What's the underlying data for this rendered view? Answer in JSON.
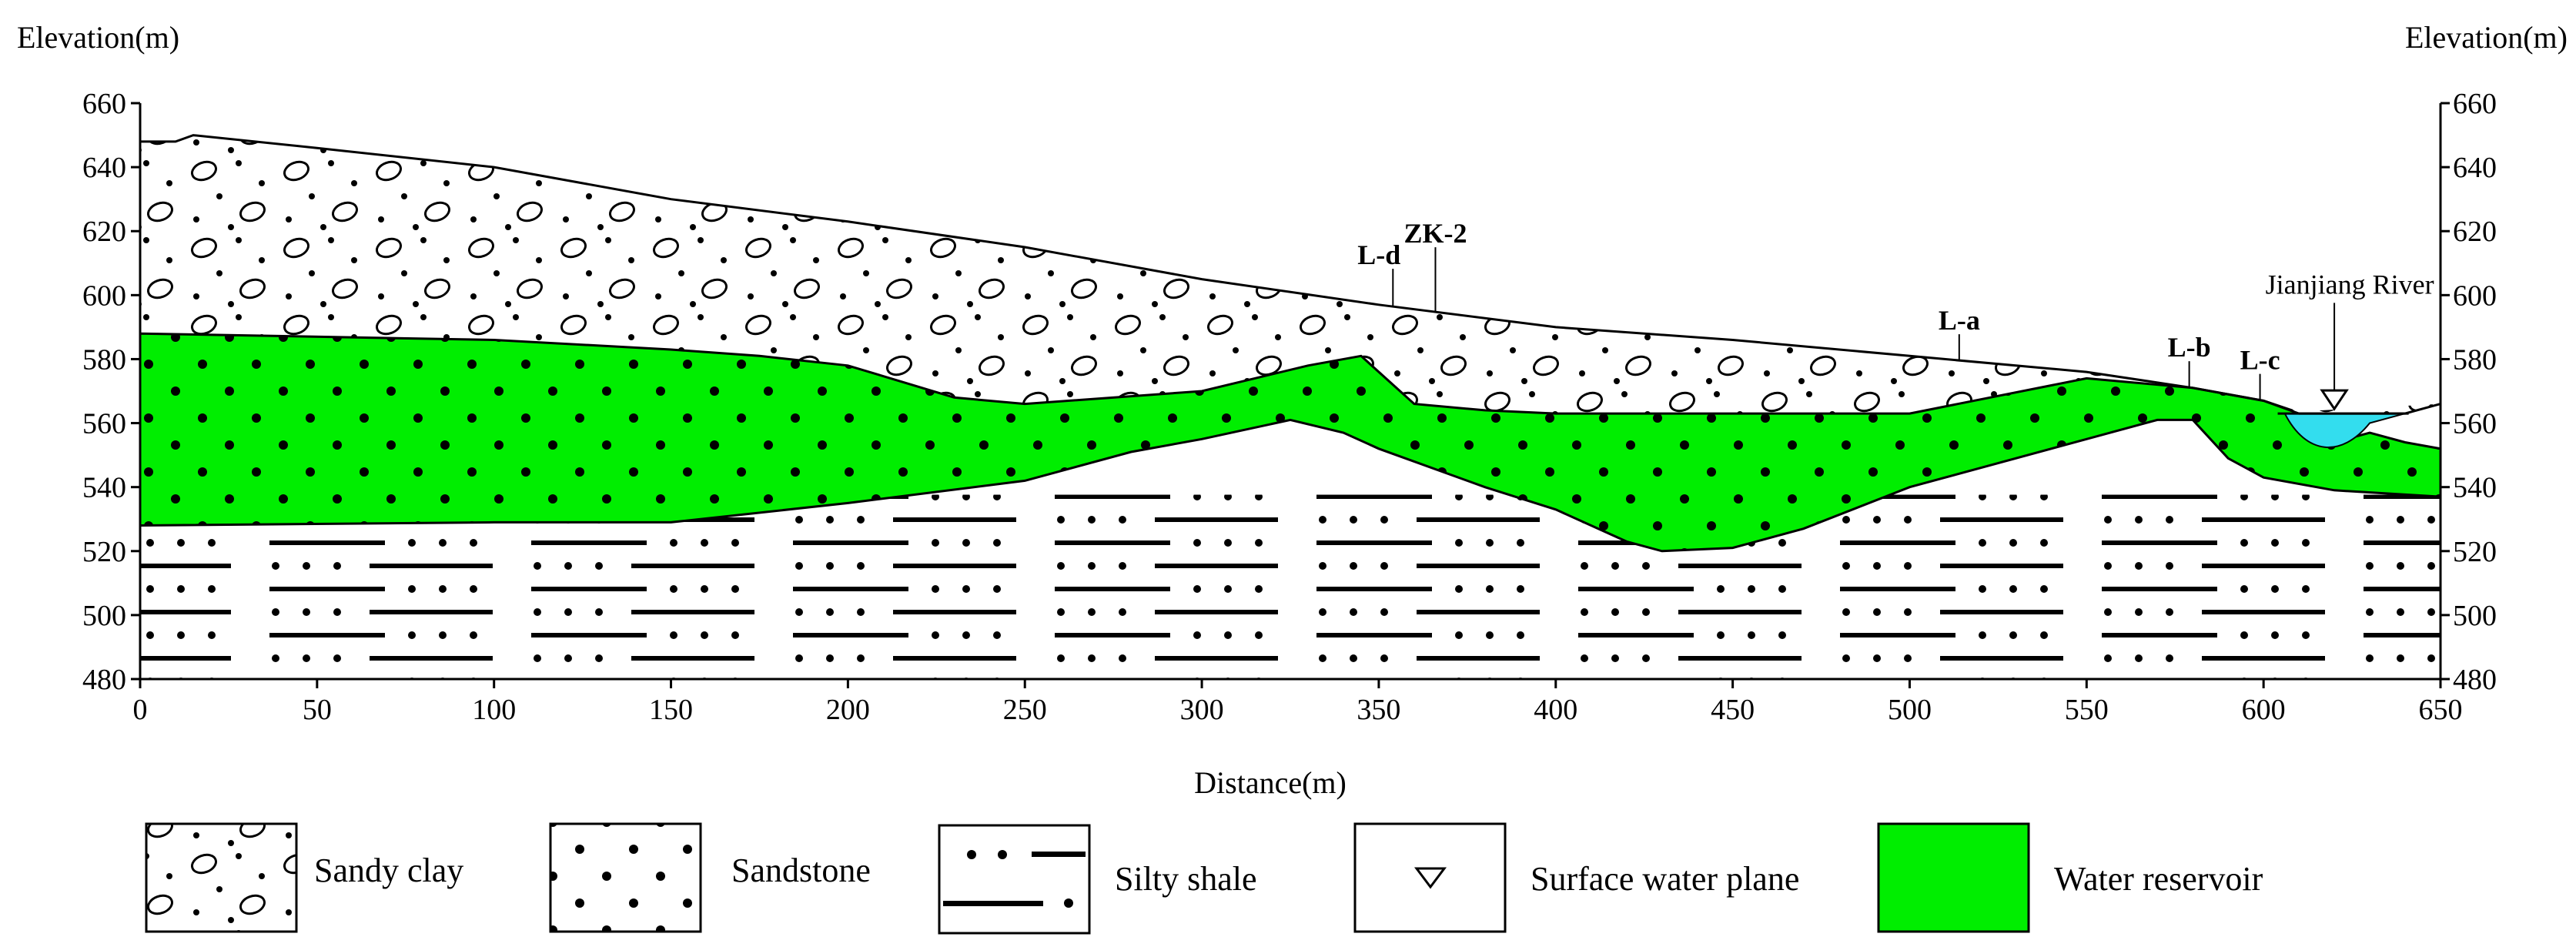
{
  "left_axis": {
    "title": "Elevation(m)",
    "ticks": [
      "660",
      "640",
      "620",
      "600",
      "580",
      "560",
      "540",
      "520",
      "500",
      "480"
    ]
  },
  "right_axis": {
    "title": "Elevation(m)",
    "ticks": [
      "660",
      "640",
      "620",
      "600",
      "580",
      "560",
      "540",
      "520",
      "500",
      "480"
    ]
  },
  "x_axis": {
    "title": "Distance(m)",
    "ticks": [
      "0",
      "50",
      "100",
      "150",
      "200",
      "250",
      "300",
      "350",
      "400",
      "450",
      "500",
      "550",
      "600",
      "650"
    ]
  },
  "callouts": {
    "zk2": "ZK-2",
    "ld": "L-d",
    "la": "L-a",
    "lb": "L-b",
    "lc": "L-c",
    "river": "Jianjiang River"
  },
  "legend": {
    "sandy_clay": "Sandy clay",
    "sandstone": "Sandstone",
    "silty_shale": "Silty shale",
    "surface_water": "Surface water plane",
    "reservoir": "Water reservoir"
  },
  "colors": {
    "reservoir": "#00ee00",
    "river": "#33ddee",
    "line": "#000000"
  },
  "chart_data": {
    "type": "geologic cross-section",
    "xlim": [
      0,
      650
    ],
    "ylim": [
      480,
      660
    ],
    "xlabel": "Distance(m)",
    "ylabel": "Elevation(m)",
    "ground_surface": [
      [
        0,
        648
      ],
      [
        10,
        648
      ],
      [
        15,
        650
      ],
      [
        50,
        646
      ],
      [
        100,
        640
      ],
      [
        150,
        630
      ],
      [
        200,
        623
      ],
      [
        250,
        615
      ],
      [
        300,
        605
      ],
      [
        350,
        597
      ],
      [
        400,
        590
      ],
      [
        450,
        586
      ],
      [
        500,
        581
      ],
      [
        550,
        576
      ],
      [
        580,
        571
      ],
      [
        600,
        567
      ],
      [
        610,
        563
      ],
      [
        640,
        563
      ],
      [
        650,
        566
      ]
    ],
    "sandy_clay_base": [
      [
        0,
        588
      ],
      [
        100,
        586
      ],
      [
        150,
        583
      ],
      [
        175,
        581
      ],
      [
        200,
        578
      ],
      [
        230,
        568
      ],
      [
        250,
        566
      ],
      [
        300,
        570
      ],
      [
        330,
        578
      ],
      [
        345,
        581
      ],
      [
        360,
        566
      ],
      [
        380,
        564
      ],
      [
        400,
        563
      ],
      [
        450,
        563
      ],
      [
        500,
        563
      ],
      [
        550,
        574
      ],
      [
        600,
        563
      ]
    ],
    "reservoir_top": [
      [
        0,
        588
      ],
      [
        100,
        586
      ],
      [
        150,
        583
      ],
      [
        175,
        581
      ],
      [
        200,
        578
      ],
      [
        230,
        568
      ],
      [
        250,
        566
      ],
      [
        300,
        570
      ],
      [
        330,
        578
      ],
      [
        345,
        581
      ],
      [
        360,
        566
      ],
      [
        380,
        564
      ],
      [
        400,
        563
      ],
      [
        450,
        563
      ],
      [
        500,
        563
      ],
      [
        550,
        574
      ],
      [
        580,
        571
      ],
      [
        600,
        567
      ],
      [
        608,
        564
      ],
      [
        620,
        554
      ],
      [
        630,
        557
      ],
      [
        640,
        554
      ],
      [
        650,
        552
      ]
    ],
    "reservoir_bottom": [
      [
        0,
        528
      ],
      [
        100,
        529
      ],
      [
        150,
        529
      ],
      [
        200,
        535
      ],
      [
        250,
        542
      ],
      [
        280,
        551
      ],
      [
        300,
        555
      ],
      [
        325,
        561
      ],
      [
        340,
        557
      ],
      [
        350,
        552
      ],
      [
        380,
        540
      ],
      [
        400,
        533
      ],
      [
        420,
        523
      ],
      [
        430,
        520
      ],
      [
        450,
        521
      ],
      [
        470,
        527
      ],
      [
        500,
        540
      ],
      [
        550,
        555
      ],
      [
        570,
        561
      ],
      [
        580,
        561
      ],
      [
        590,
        549
      ],
      [
        600,
        543
      ],
      [
        620,
        539
      ],
      [
        650,
        537
      ]
    ],
    "water_level": 563,
    "river_bottom": 550,
    "callout_positions_m": {
      "L-d": 354,
      "ZK-2": 366,
      "L-a": 514,
      "L-b": 579,
      "L-c": 599,
      "Jianjiang River": 620
    }
  }
}
